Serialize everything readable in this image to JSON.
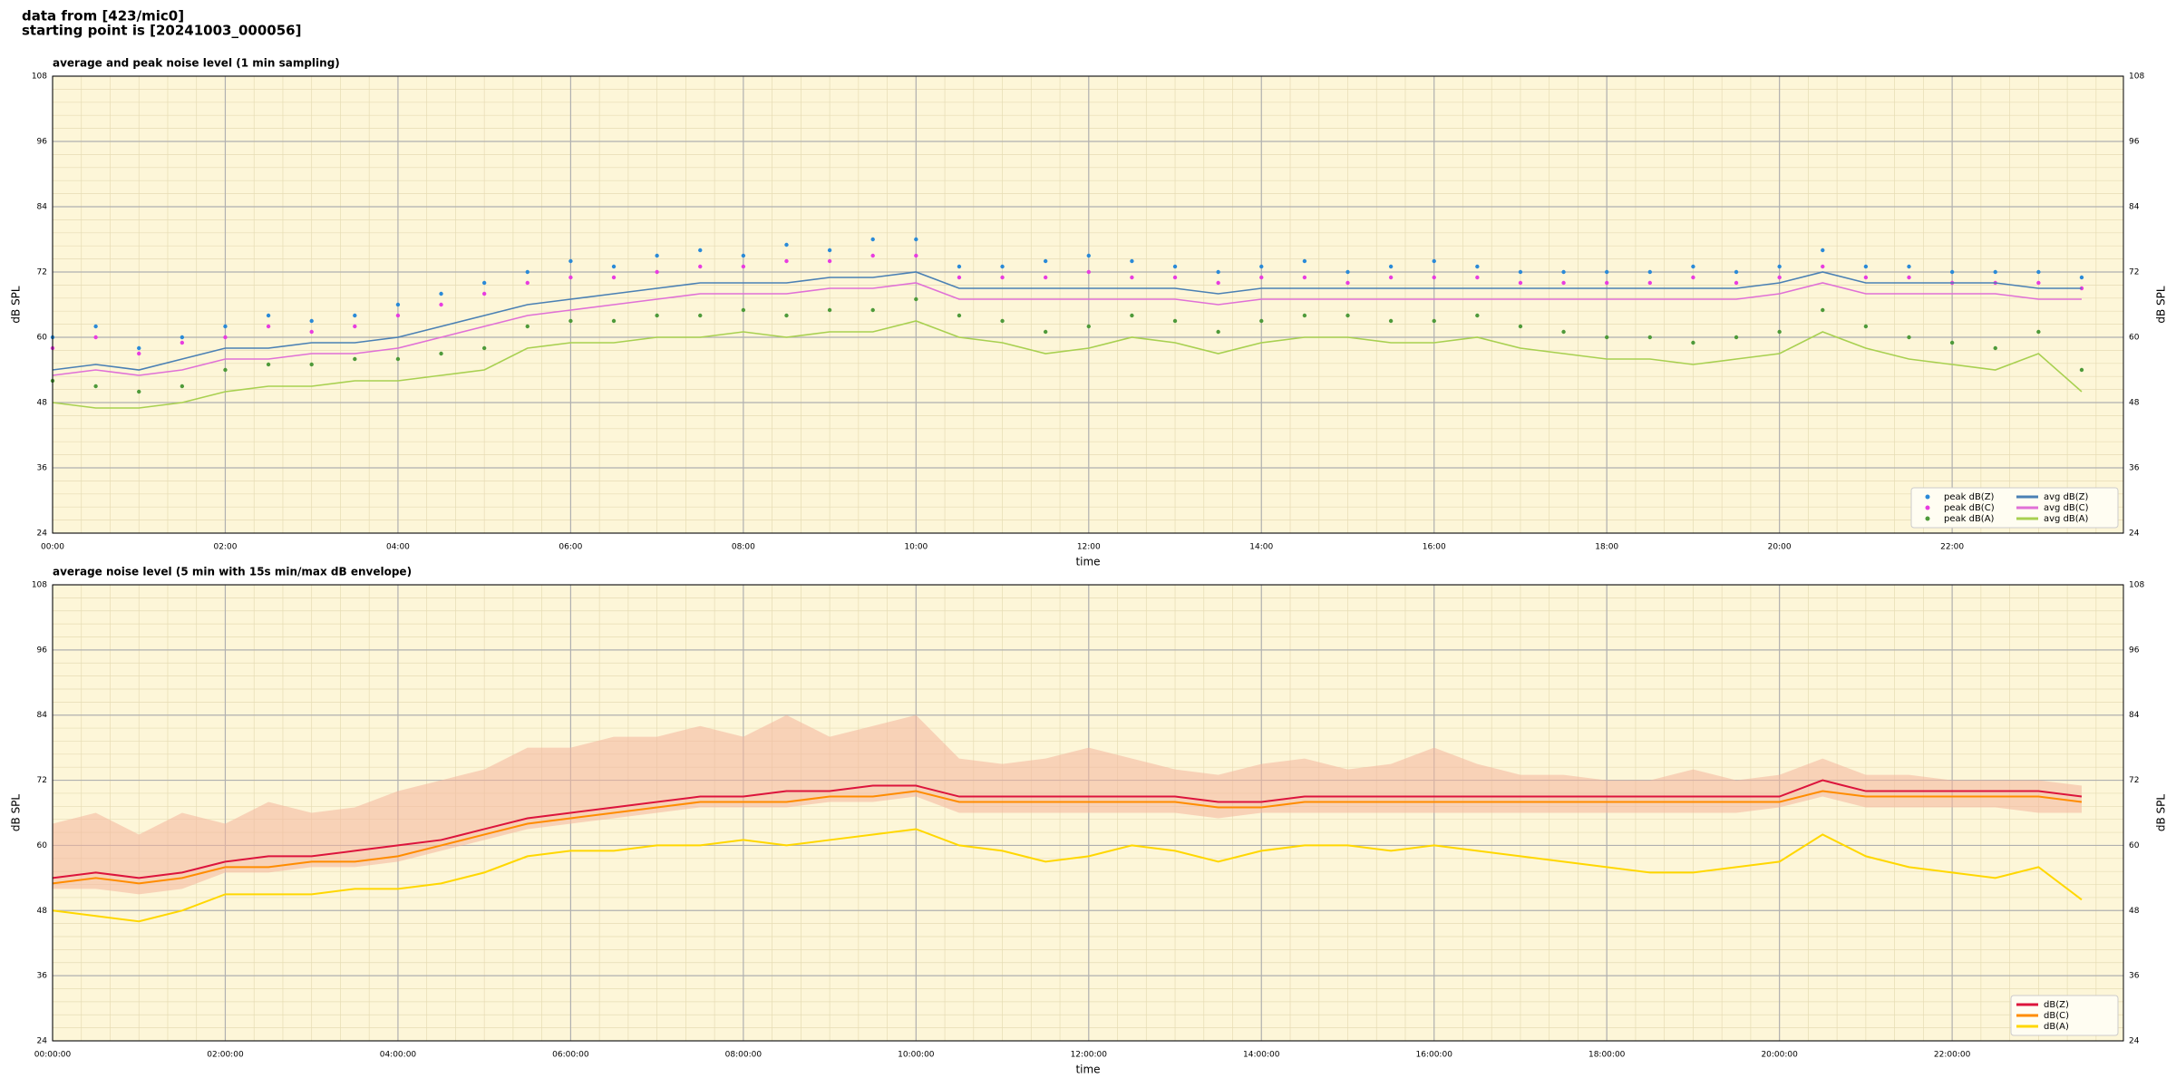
{
  "suptitle": [
    "data from [423/mic0]",
    "starting point is [20241003_000056]"
  ],
  "chart_data": [
    {
      "type": "line",
      "title": "average and peak noise level (1 min sampling)",
      "xlabel": "time",
      "ylabel": "dB SPL",
      "x": [
        "00:00",
        "00:30",
        "01:00",
        "01:30",
        "02:00",
        "02:30",
        "03:00",
        "03:30",
        "04:00",
        "04:30",
        "05:00",
        "05:30",
        "06:00",
        "06:30",
        "07:00",
        "07:30",
        "08:00",
        "08:30",
        "09:00",
        "09:30",
        "10:00",
        "10:30",
        "11:00",
        "11:30",
        "12:00",
        "12:30",
        "13:00",
        "13:30",
        "14:00",
        "14:30",
        "15:00",
        "15:30",
        "16:00",
        "16:30",
        "17:00",
        "17:30",
        "18:00",
        "18:30",
        "19:00",
        "19:30",
        "20:00",
        "20:30",
        "21:00",
        "21:30",
        "22:00",
        "22:30",
        "23:00",
        "23:30"
      ],
      "xlim": [
        "00:00",
        "23:59"
      ],
      "xticks": [
        "00:00",
        "02:00",
        "04:00",
        "06:00",
        "08:00",
        "10:00",
        "12:00",
        "14:00",
        "16:00",
        "18:00",
        "20:00",
        "22:00"
      ],
      "ylim": [
        24,
        108
      ],
      "yticks": [
        24,
        36,
        48,
        60,
        72,
        84,
        96,
        108
      ],
      "grid": true,
      "background": "#fdf6d8",
      "legend": "lower right",
      "legend_columns": 2,
      "series": [
        {
          "name": "peak dB(Z)",
          "style": "points",
          "color": "#2a8ad8",
          "values": [
            60,
            62,
            58,
            60,
            62,
            64,
            63,
            64,
            66,
            68,
            70,
            72,
            74,
            73,
            75,
            76,
            75,
            77,
            76,
            78,
            78,
            73,
            73,
            74,
            75,
            74,
            73,
            72,
            73,
            74,
            72,
            73,
            74,
            73,
            72,
            72,
            72,
            72,
            73,
            72,
            73,
            76,
            73,
            73,
            72,
            72,
            72,
            71
          ]
        },
        {
          "name": "peak dB(C)",
          "style": "points",
          "color": "#e83ce0",
          "values": [
            58,
            60,
            57,
            59,
            60,
            62,
            61,
            62,
            64,
            66,
            68,
            70,
            71,
            71,
            72,
            73,
            73,
            74,
            74,
            75,
            75,
            71,
            71,
            71,
            72,
            71,
            71,
            70,
            71,
            71,
            70,
            71,
            71,
            71,
            70,
            70,
            70,
            70,
            71,
            70,
            71,
            73,
            71,
            71,
            70,
            70,
            70,
            69
          ]
        },
        {
          "name": "peak dB(A)",
          "style": "points",
          "color": "#4e9a3a",
          "values": [
            52,
            51,
            50,
            51,
            54,
            55,
            55,
            56,
            56,
            57,
            58,
            62,
            63,
            63,
            64,
            64,
            65,
            64,
            65,
            65,
            67,
            64,
            63,
            61,
            62,
            64,
            63,
            61,
            63,
            64,
            64,
            63,
            63,
            64,
            62,
            61,
            60,
            60,
            59,
            60,
            61,
            65,
            62,
            60,
            59,
            58,
            61,
            54
          ]
        },
        {
          "name": "avg dB(Z)",
          "style": "line",
          "color": "#4a80b4",
          "values": [
            54,
            55,
            54,
            56,
            58,
            58,
            59,
            59,
            60,
            62,
            64,
            66,
            67,
            68,
            69,
            70,
            70,
            70,
            71,
            71,
            72,
            69,
            69,
            69,
            69,
            69,
            69,
            68,
            69,
            69,
            69,
            69,
            69,
            69,
            69,
            69,
            69,
            69,
            69,
            69,
            70,
            72,
            70,
            70,
            70,
            70,
            69,
            69
          ]
        },
        {
          "name": "avg dB(C)",
          "style": "line",
          "color": "#e070d6",
          "values": [
            53,
            54,
            53,
            54,
            56,
            56,
            57,
            57,
            58,
            60,
            62,
            64,
            65,
            66,
            67,
            68,
            68,
            68,
            69,
            69,
            70,
            67,
            67,
            67,
            67,
            67,
            67,
            66,
            67,
            67,
            67,
            67,
            67,
            67,
            67,
            67,
            67,
            67,
            67,
            67,
            68,
            70,
            68,
            68,
            68,
            68,
            67,
            67
          ]
        },
        {
          "name": "avg dB(A)",
          "style": "line",
          "color": "#a8d050",
          "values": [
            48,
            47,
            47,
            48,
            50,
            51,
            51,
            52,
            52,
            53,
            54,
            58,
            59,
            59,
            60,
            60,
            61,
            60,
            61,
            61,
            63,
            60,
            59,
            57,
            58,
            60,
            59,
            57,
            59,
            60,
            60,
            59,
            59,
            60,
            58,
            57,
            56,
            56,
            55,
            56,
            57,
            61,
            58,
            56,
            55,
            54,
            57,
            50
          ]
        }
      ]
    },
    {
      "type": "line",
      "title": "average noise level (5 min with 15s min/max dB envelope)",
      "xlabel": "time",
      "ylabel": "dB SPL",
      "x": [
        "00:00:00",
        "00:30:00",
        "01:00:00",
        "01:30:00",
        "02:00:00",
        "02:30:00",
        "03:00:00",
        "03:30:00",
        "04:00:00",
        "04:30:00",
        "05:00:00",
        "05:30:00",
        "06:00:00",
        "06:30:00",
        "07:00:00",
        "07:30:00",
        "08:00:00",
        "08:30:00",
        "09:00:00",
        "09:30:00",
        "10:00:00",
        "10:30:00",
        "11:00:00",
        "11:30:00",
        "12:00:00",
        "12:30:00",
        "13:00:00",
        "13:30:00",
        "14:00:00",
        "14:30:00",
        "15:00:00",
        "15:30:00",
        "16:00:00",
        "16:30:00",
        "17:00:00",
        "17:30:00",
        "18:00:00",
        "18:30:00",
        "19:00:00",
        "19:30:00",
        "20:00:00",
        "20:30:00",
        "21:00:00",
        "21:30:00",
        "22:00:00",
        "22:30:00",
        "23:00:00",
        "23:30:00"
      ],
      "xlim": [
        "00:00:00",
        "23:59:00"
      ],
      "xticks": [
        "00:00:00",
        "02:00:00",
        "04:00:00",
        "06:00:00",
        "08:00:00",
        "10:00:00",
        "12:00:00",
        "14:00:00",
        "16:00:00",
        "18:00:00",
        "20:00:00",
        "22:00:00"
      ],
      "ylim": [
        24,
        108
      ],
      "yticks": [
        24,
        36,
        48,
        60,
        72,
        84,
        96,
        108
      ],
      "grid": true,
      "background": "#fdf6d8",
      "legend": "lower right",
      "legend_columns": 1,
      "envelope": {
        "color": "#f4b49c",
        "high": [
          64,
          66,
          62,
          66,
          64,
          68,
          66,
          67,
          70,
          72,
          74,
          78,
          78,
          80,
          80,
          82,
          80,
          84,
          80,
          82,
          84,
          76,
          75,
          76,
          78,
          76,
          74,
          73,
          75,
          76,
          74,
          75,
          78,
          75,
          73,
          73,
          72,
          72,
          74,
          72,
          73,
          76,
          73,
          73,
          72,
          72,
          72,
          71
        ],
        "low": [
          52,
          52,
          51,
          52,
          55,
          55,
          56,
          56,
          57,
          59,
          61,
          63,
          64,
          65,
          66,
          67,
          67,
          67,
          68,
          68,
          69,
          66,
          66,
          66,
          66,
          66,
          66,
          65,
          66,
          66,
          66,
          66,
          66,
          66,
          66,
          66,
          66,
          66,
          66,
          66,
          67,
          69,
          67,
          67,
          67,
          67,
          66,
          66
        ]
      },
      "series": [
        {
          "name": "dB(Z)",
          "color": "#dc143c",
          "values": [
            54,
            55,
            54,
            55,
            57,
            58,
            58,
            59,
            60,
            61,
            63,
            65,
            66,
            67,
            68,
            69,
            69,
            70,
            70,
            71,
            71,
            69,
            69,
            69,
            69,
            69,
            69,
            68,
            68,
            69,
            69,
            69,
            69,
            69,
            69,
            69,
            69,
            69,
            69,
            69,
            69,
            72,
            70,
            70,
            70,
            70,
            70,
            69
          ]
        },
        {
          "name": "dB(C)",
          "color": "#ff8c00",
          "values": [
            53,
            54,
            53,
            54,
            56,
            56,
            57,
            57,
            58,
            60,
            62,
            64,
            65,
            66,
            67,
            68,
            68,
            68,
            69,
            69,
            70,
            68,
            68,
            68,
            68,
            68,
            68,
            67,
            67,
            68,
            68,
            68,
            68,
            68,
            68,
            68,
            68,
            68,
            68,
            68,
            68,
            70,
            69,
            69,
            69,
            69,
            69,
            68
          ]
        },
        {
          "name": "dB(A)",
          "color": "#ffd700",
          "values": [
            48,
            47,
            46,
            48,
            51,
            51,
            51,
            52,
            52,
            53,
            55,
            58,
            59,
            59,
            60,
            60,
            61,
            60,
            61,
            62,
            63,
            60,
            59,
            57,
            58,
            60,
            59,
            57,
            59,
            60,
            60,
            59,
            60,
            59,
            58,
            57,
            56,
            55,
            55,
            56,
            57,
            62,
            58,
            56,
            55,
            54,
            56,
            50
          ]
        }
      ]
    }
  ]
}
